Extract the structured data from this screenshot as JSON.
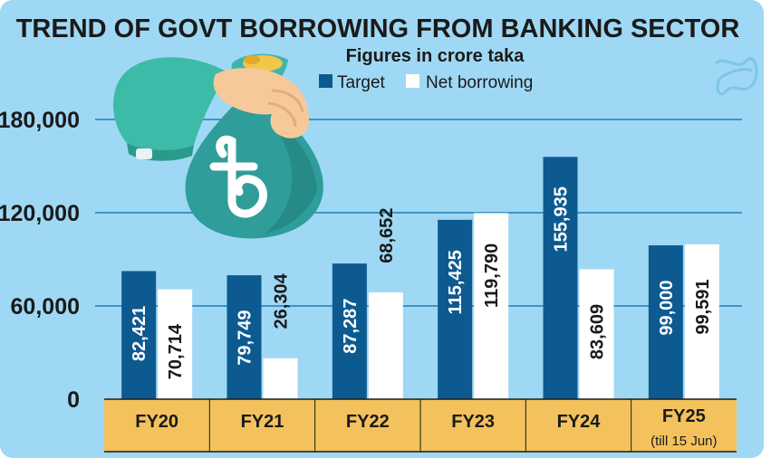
{
  "chart_data": {
    "type": "bar",
    "title": "TREND OF GOVT BORROWING FROM BANKING SECTOR",
    "subtitle": "Figures in crore taka",
    "categories": [
      "FY20",
      "FY21",
      "FY22",
      "FY23",
      "FY24",
      "FY25"
    ],
    "category_notes": [
      "",
      "",
      "",
      "",
      "",
      "(till 15 Jun)"
    ],
    "series": [
      {
        "name": "Target",
        "color": "#0d5a91",
        "values": [
          82421,
          79749,
          87287,
          115425,
          155935,
          99000
        ],
        "labels": [
          "82,421",
          "79,749",
          "87,287",
          "115,425",
          "155,935",
          "99,000"
        ]
      },
      {
        "name": "Net borrowing",
        "color": "#ffffff",
        "values": [
          70714,
          26304,
          68652,
          119790,
          83609,
          99591
        ],
        "labels": [
          "70,714",
          "26,304",
          "68,652",
          "119,790",
          "83,609",
          "99,591"
        ]
      }
    ],
    "ylim": [
      0,
      180000
    ],
    "yticks": [
      0,
      60000,
      120000,
      180000
    ],
    "ytick_labels": [
      "0",
      "60,000",
      "120,000",
      "180,000"
    ],
    "grid": true,
    "legend_position": "top"
  },
  "colors": {
    "panel": "#9fd8f4",
    "axis_band": "#f3c25c",
    "grid": "#1e7fb7",
    "text": "#1a1a1a"
  },
  "icons": {
    "illustration": "money-bag-hand-icon"
  }
}
